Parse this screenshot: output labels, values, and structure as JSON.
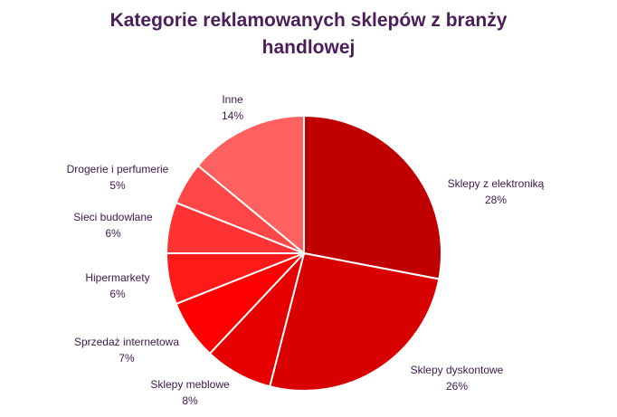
{
  "chart_data": {
    "type": "pie",
    "title_line1": "Kategorie reklamowanych sklepów z branży",
    "title_line2": "handlowej",
    "slices": [
      {
        "name": "Sklepy z elektroniką",
        "value": 28,
        "label": "28%",
        "color": "#c00000"
      },
      {
        "name": "Sklepy dyskontowe",
        "value": 26,
        "label": "26%",
        "color": "#d90000"
      },
      {
        "name": "Sklepy meblowe",
        "value": 8,
        "label": "8%",
        "color": "#e60000"
      },
      {
        "name": "Sprzedaż internetowa",
        "value": 7,
        "label": "7%",
        "color": "#ff0000"
      },
      {
        "name": "Hipermarkety",
        "value": 6,
        "label": "6%",
        "color": "#ff1a1a"
      },
      {
        "name": "Sieci budowlane",
        "value": 6,
        "label": "6%",
        "color": "#ff3333"
      },
      {
        "name": "Drogerie i perfumerie",
        "value": 5,
        "label": "5%",
        "color": "#ff4747"
      },
      {
        "name": "Inne",
        "value": 14,
        "label": "14%",
        "color": "#ff6060"
      }
    ]
  }
}
